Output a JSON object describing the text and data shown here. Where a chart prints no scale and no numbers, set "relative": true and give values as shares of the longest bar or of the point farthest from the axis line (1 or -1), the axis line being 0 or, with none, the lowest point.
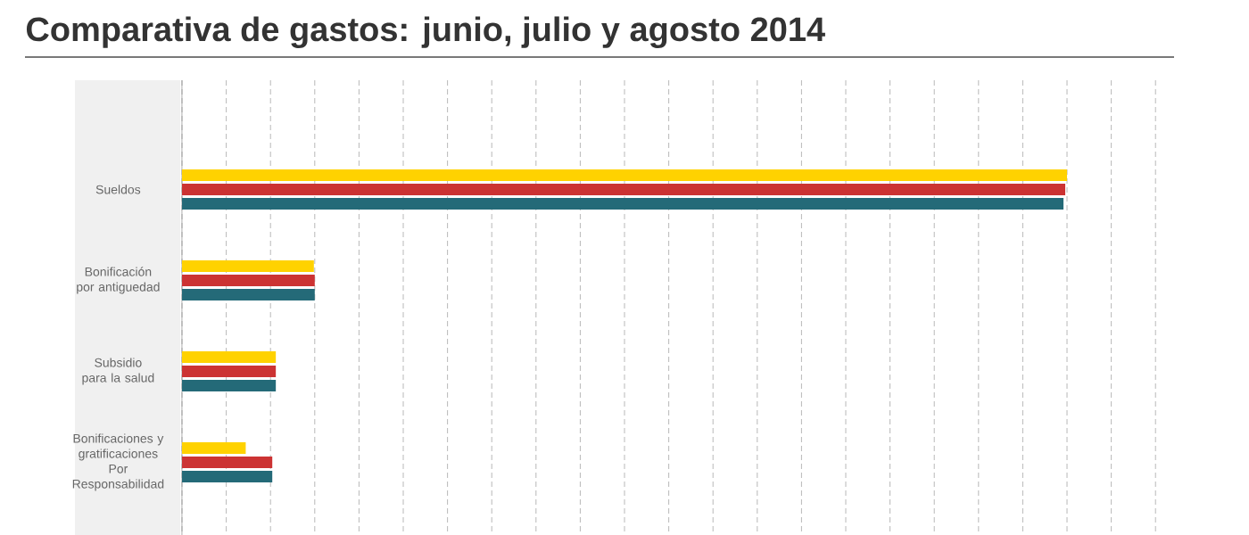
{
  "chart_data": {
    "type": "bar",
    "orientation": "horizontal",
    "relative": true,
    "title": "Comparativa de gastos: junio, julio y agosto 2014",
    "categories": [
      "Sueldos",
      "Bonificación por antiguedad",
      "Subsidio para la salud",
      "Bonificaciones y gratificaciones Por Responsabilidad"
    ],
    "series": [
      {
        "color": "#ffd200",
        "values": [
          1,
          0.149,
          0.106,
          0.072
        ]
      },
      {
        "color": "#cc3333",
        "values": [
          0.998,
          0.15,
          0.106,
          0.102
        ]
      },
      {
        "color": "#246a78",
        "values": [
          0.996,
          0.15,
          0.106,
          0.102
        ]
      }
    ],
    "grid": "x",
    "tick_labels": "y"
  }
}
